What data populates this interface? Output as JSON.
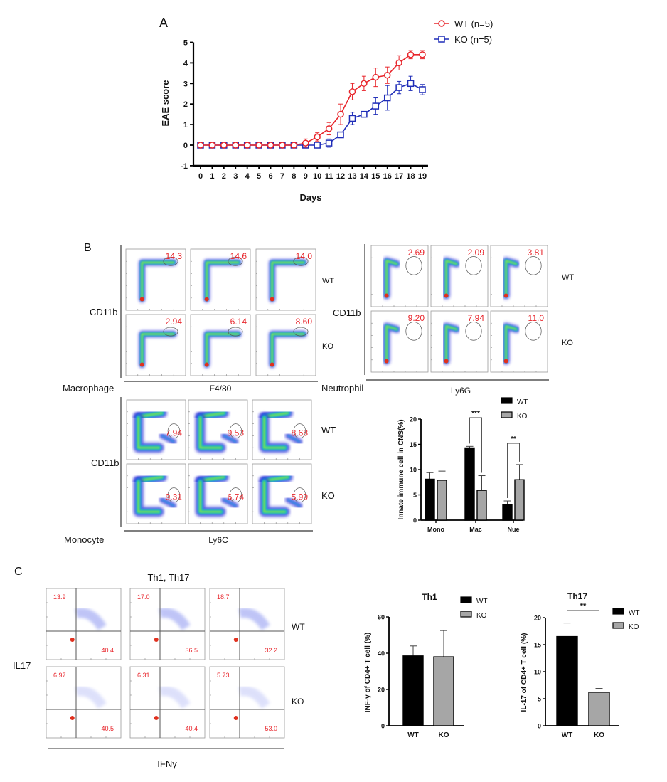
{
  "panels": {
    "a": "A",
    "b": "B",
    "c": "C"
  },
  "colors": {
    "wt_line": "#e8262c",
    "ko_line": "#1f2db8",
    "wt_bar": "#000000",
    "ko_bar": "#a6a6a6",
    "gate_text": "#e8262c"
  },
  "chart_data": [
    {
      "type": "line",
      "xlabel": "Days",
      "ylabel": "EAE score",
      "ylim": [
        -1,
        5
      ],
      "yticks": [
        "-1",
        "0",
        "1",
        "2",
        "3",
        "4",
        "5"
      ],
      "x": [
        0,
        1,
        2,
        3,
        4,
        5,
        6,
        7,
        8,
        9,
        10,
        11,
        12,
        13,
        14,
        15,
        16,
        17,
        18,
        19
      ],
      "legend_position": "top-right",
      "series": [
        {
          "name": "WT (n=5)",
          "marker": "circle",
          "color": "#e8262c",
          "values": [
            0,
            0,
            0,
            0,
            0,
            0,
            0,
            0,
            0,
            0.1,
            0.4,
            0.8,
            1.5,
            2.6,
            3.0,
            3.3,
            3.4,
            4.0,
            4.4,
            4.4
          ],
          "errors": [
            0,
            0,
            0,
            0,
            0,
            0,
            0,
            0,
            0,
            0.2,
            0.2,
            0.3,
            0.5,
            0.4,
            0.35,
            0.45,
            0.4,
            0.35,
            0.2,
            0.2
          ]
        },
        {
          "name": "KO (n=5)",
          "marker": "square",
          "color": "#1f2db8",
          "values": [
            0,
            0,
            0,
            0,
            0,
            0,
            0,
            0,
            0,
            0,
            0,
            0.1,
            0.5,
            1.3,
            1.5,
            1.9,
            2.3,
            2.8,
            3.0,
            2.7
          ],
          "errors": [
            0,
            0,
            0,
            0,
            0,
            0,
            0,
            0,
            0,
            0,
            0,
            0.2,
            0.1,
            0.3,
            0.1,
            0.4,
            0.6,
            0.3,
            0.35,
            0.25
          ]
        }
      ]
    },
    {
      "type": "bar",
      "ylabel": "Innate immune cell in CNS(%)",
      "ylim": [
        0,
        20
      ],
      "yticks": [
        "0",
        "5",
        "10",
        "15",
        "20"
      ],
      "categories": [
        "Mono",
        "Mac",
        "Nue"
      ],
      "legend_position": "top-right",
      "series": [
        {
          "name": "WT",
          "values": [
            8.1,
            14.3,
            3.0
          ],
          "errors": [
            1.3,
            0.3,
            0.8
          ]
        },
        {
          "name": "KO",
          "values": [
            7.9,
            5.9,
            8.0
          ],
          "errors": [
            1.8,
            2.9,
            3.0
          ]
        }
      ],
      "significance": [
        {
          "category": "Mac",
          "label": "***"
        },
        {
          "category": "Nue",
          "label": "**"
        }
      ]
    },
    {
      "type": "bar",
      "title": "Th1",
      "ylabel": "INF-γ of CD4+ T cell (%)",
      "ylim": [
        0,
        60
      ],
      "yticks": [
        "0",
        "20",
        "40",
        "60"
      ],
      "categories": [
        "WT",
        "KO"
      ],
      "legend": [
        "WT",
        "KO"
      ],
      "values": [
        38.5,
        38.0
      ],
      "errors": [
        5.5,
        14.5
      ]
    },
    {
      "type": "bar",
      "title": "Th17",
      "ylabel": "IL-17 of CD4+ T cell (%)",
      "ylim": [
        0,
        20
      ],
      "yticks": [
        "0",
        "5",
        "10",
        "15",
        "20"
      ],
      "categories": [
        "WT",
        "KO"
      ],
      "legend": [
        "WT",
        "KO"
      ],
      "values": [
        16.5,
        6.2
      ],
      "errors": [
        2.5,
        0.7
      ],
      "significance": "**"
    }
  ],
  "flow": {
    "macrophage": {
      "name": "Macrophage",
      "yaxis": "CD11b",
      "xaxis": "F4/80",
      "rows": [
        "WT",
        "KO"
      ],
      "gates": [
        [
          "14.3",
          "14.6",
          "14.0"
        ],
        [
          "2.94",
          "6.14",
          "8.60"
        ]
      ]
    },
    "neutrophil": {
      "name": "Neutrophil",
      "yaxis": "CD11b",
      "xaxis": "Ly6G",
      "rows": [
        "WT",
        "KO"
      ],
      "gates": [
        [
          "2.69",
          "2.09",
          "3.81"
        ],
        [
          "9.20",
          "7.94",
          "11.0"
        ]
      ]
    },
    "monocyte": {
      "name": "Monocyte",
      "yaxis": "CD11b",
      "xaxis": "Ly6C",
      "rows": [
        "WT",
        "KO"
      ],
      "gates": [
        [
          "7.94",
          "9.53",
          "8.68"
        ],
        [
          "9.31",
          "6.74",
          "5.99"
        ]
      ]
    },
    "th": {
      "title": "Th1, Th17",
      "yaxis": "IL17",
      "xaxis": "IFNγ",
      "rows": [
        "WT",
        "KO"
      ],
      "upper_left": [
        [
          "13.9",
          "17.0",
          "18.7"
        ],
        [
          "6.97",
          "6.31",
          "5.73"
        ]
      ],
      "lower_right": [
        [
          "40.4",
          "36.5",
          "32.2"
        ],
        [
          "40.5",
          "40.4",
          "53.0"
        ]
      ]
    }
  }
}
